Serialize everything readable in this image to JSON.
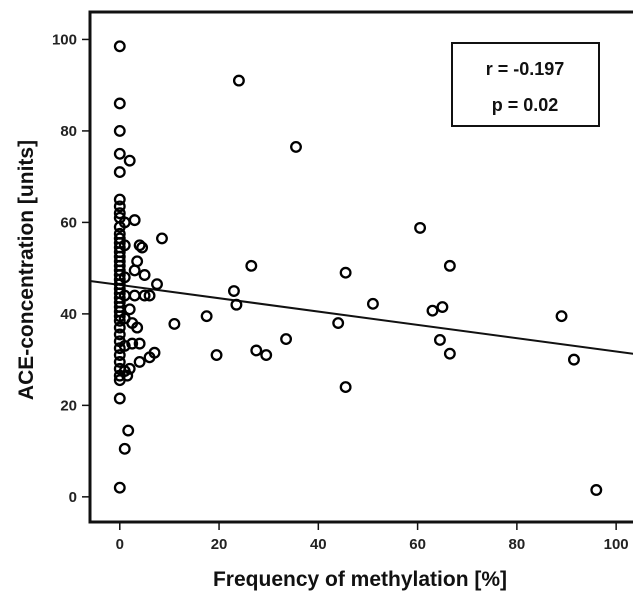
{
  "chart_data": {
    "type": "scatter",
    "title": "",
    "xlabel": "Frequency of methylation [%]",
    "ylabel": "ACE-concentration [units]",
    "xlim": [
      -6,
      104
    ],
    "ylim": [
      -5.5,
      106
    ],
    "x_ticks": [
      "0",
      "20",
      "40",
      "60",
      "80",
      "100"
    ],
    "y_ticks": [
      "0",
      "20",
      "40",
      "60",
      "80",
      "100"
    ],
    "grid": false,
    "legend": "none",
    "stats": {
      "r_text": "r = -0.197",
      "p_text": "p = 0.02"
    },
    "regression_line": {
      "x": [
        -6,
        104
      ],
      "y": [
        47.2,
        31.2
      ]
    },
    "marker_color": "#000000",
    "points": [
      [
        0,
        98.5
      ],
      [
        0,
        86
      ],
      [
        0,
        80
      ],
      [
        0,
        75
      ],
      [
        0,
        71
      ],
      [
        0,
        65
      ],
      [
        0,
        63.5
      ],
      [
        0,
        62
      ],
      [
        0,
        61
      ],
      [
        0,
        59
      ],
      [
        0,
        57.5
      ],
      [
        0,
        56.5
      ],
      [
        0,
        55.5
      ],
      [
        0,
        54.5
      ],
      [
        0,
        53.5
      ],
      [
        0,
        52.5
      ],
      [
        0,
        51.5
      ],
      [
        0,
        50.5
      ],
      [
        0,
        49.5
      ],
      [
        0,
        48.5
      ],
      [
        0,
        47.5
      ],
      [
        0,
        46.5
      ],
      [
        0,
        45.5
      ],
      [
        0,
        44.5
      ],
      [
        0,
        43.5
      ],
      [
        0,
        42.5
      ],
      [
        0,
        41.5
      ],
      [
        0,
        40.5
      ],
      [
        0,
        39.5
      ],
      [
        0,
        38.5
      ],
      [
        0,
        37
      ],
      [
        0,
        35.5
      ],
      [
        0,
        34
      ],
      [
        0,
        32.5
      ],
      [
        0,
        31
      ],
      [
        0,
        29.5
      ],
      [
        0,
        28
      ],
      [
        0,
        26.5
      ],
      [
        0,
        25.5
      ],
      [
        0,
        21.5
      ],
      [
        0,
        2
      ],
      [
        1,
        60
      ],
      [
        1,
        55
      ],
      [
        1,
        48
      ],
      [
        1,
        44
      ],
      [
        1,
        39
      ],
      [
        1,
        33
      ],
      [
        1,
        27.5
      ],
      [
        1,
        10.5
      ],
      [
        1.5,
        26.5
      ],
      [
        1.7,
        14.5
      ],
      [
        2,
        73.5
      ],
      [
        2,
        41
      ],
      [
        2,
        28
      ],
      [
        2.5,
        38
      ],
      [
        2.5,
        33.5
      ],
      [
        3,
        60.5
      ],
      [
        3,
        49.5
      ],
      [
        3,
        44
      ],
      [
        3.5,
        51.5
      ],
      [
        3.5,
        37
      ],
      [
        4,
        55
      ],
      [
        4,
        33.5
      ],
      [
        4.5,
        54.5
      ],
      [
        4,
        29.5
      ],
      [
        5,
        48.5
      ],
      [
        5,
        44
      ],
      [
        6,
        30.5
      ],
      [
        6,
        44
      ],
      [
        7,
        31.5
      ],
      [
        7.5,
        46.5
      ],
      [
        8.5,
        56.5
      ],
      [
        11,
        37.8
      ],
      [
        17.5,
        39.5
      ],
      [
        19.5,
        31
      ],
      [
        23,
        45
      ],
      [
        23.5,
        42
      ],
      [
        24,
        91
      ],
      [
        26.5,
        50.5
      ],
      [
        27.5,
        32
      ],
      [
        29.5,
        31
      ],
      [
        33.5,
        34.5
      ],
      [
        35.5,
        76.5
      ],
      [
        44,
        38
      ],
      [
        45.5,
        49
      ],
      [
        45.5,
        24
      ],
      [
        51,
        42.2
      ],
      [
        60.5,
        58.8
      ],
      [
        63,
        40.7
      ],
      [
        64.5,
        34.3
      ],
      [
        65,
        41.5
      ],
      [
        66.5,
        50.5
      ],
      [
        66.5,
        31.3
      ],
      [
        89,
        39.5
      ],
      [
        91.5,
        30
      ],
      [
        96,
        1.5
      ]
    ]
  }
}
